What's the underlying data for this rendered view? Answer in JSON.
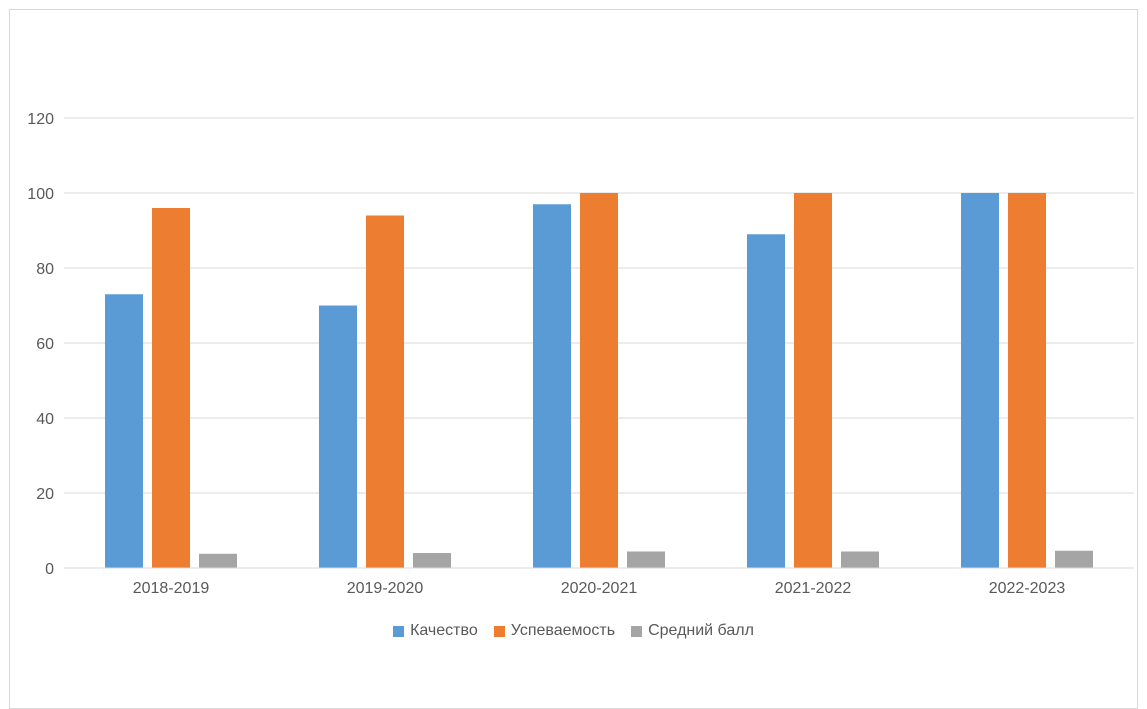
{
  "chart_data": {
    "type": "bar",
    "title": "",
    "xlabel": "",
    "ylabel": "",
    "categories": [
      "2018-2019",
      "2019-2020",
      "2020-2021",
      "2021-2022",
      "2022-2023"
    ],
    "series": [
      {
        "name": "Качество",
        "color": "#5b9bd5",
        "values": [
          73,
          70,
          97,
          89,
          100
        ]
      },
      {
        "name": "Успеваемость",
        "color": "#ed7d31",
        "values": [
          96,
          94,
          100,
          100,
          100
        ]
      },
      {
        "name": "Средний балл",
        "color": "#a5a5a5",
        "values": [
          3.8,
          4.0,
          4.4,
          4.4,
          4.6
        ]
      }
    ],
    "ylim": [
      0,
      120
    ],
    "yticks": [
      "0",
      "20",
      "40",
      "60",
      "80",
      "100",
      "120"
    ],
    "grid": true,
    "legend_position": "bottom"
  }
}
